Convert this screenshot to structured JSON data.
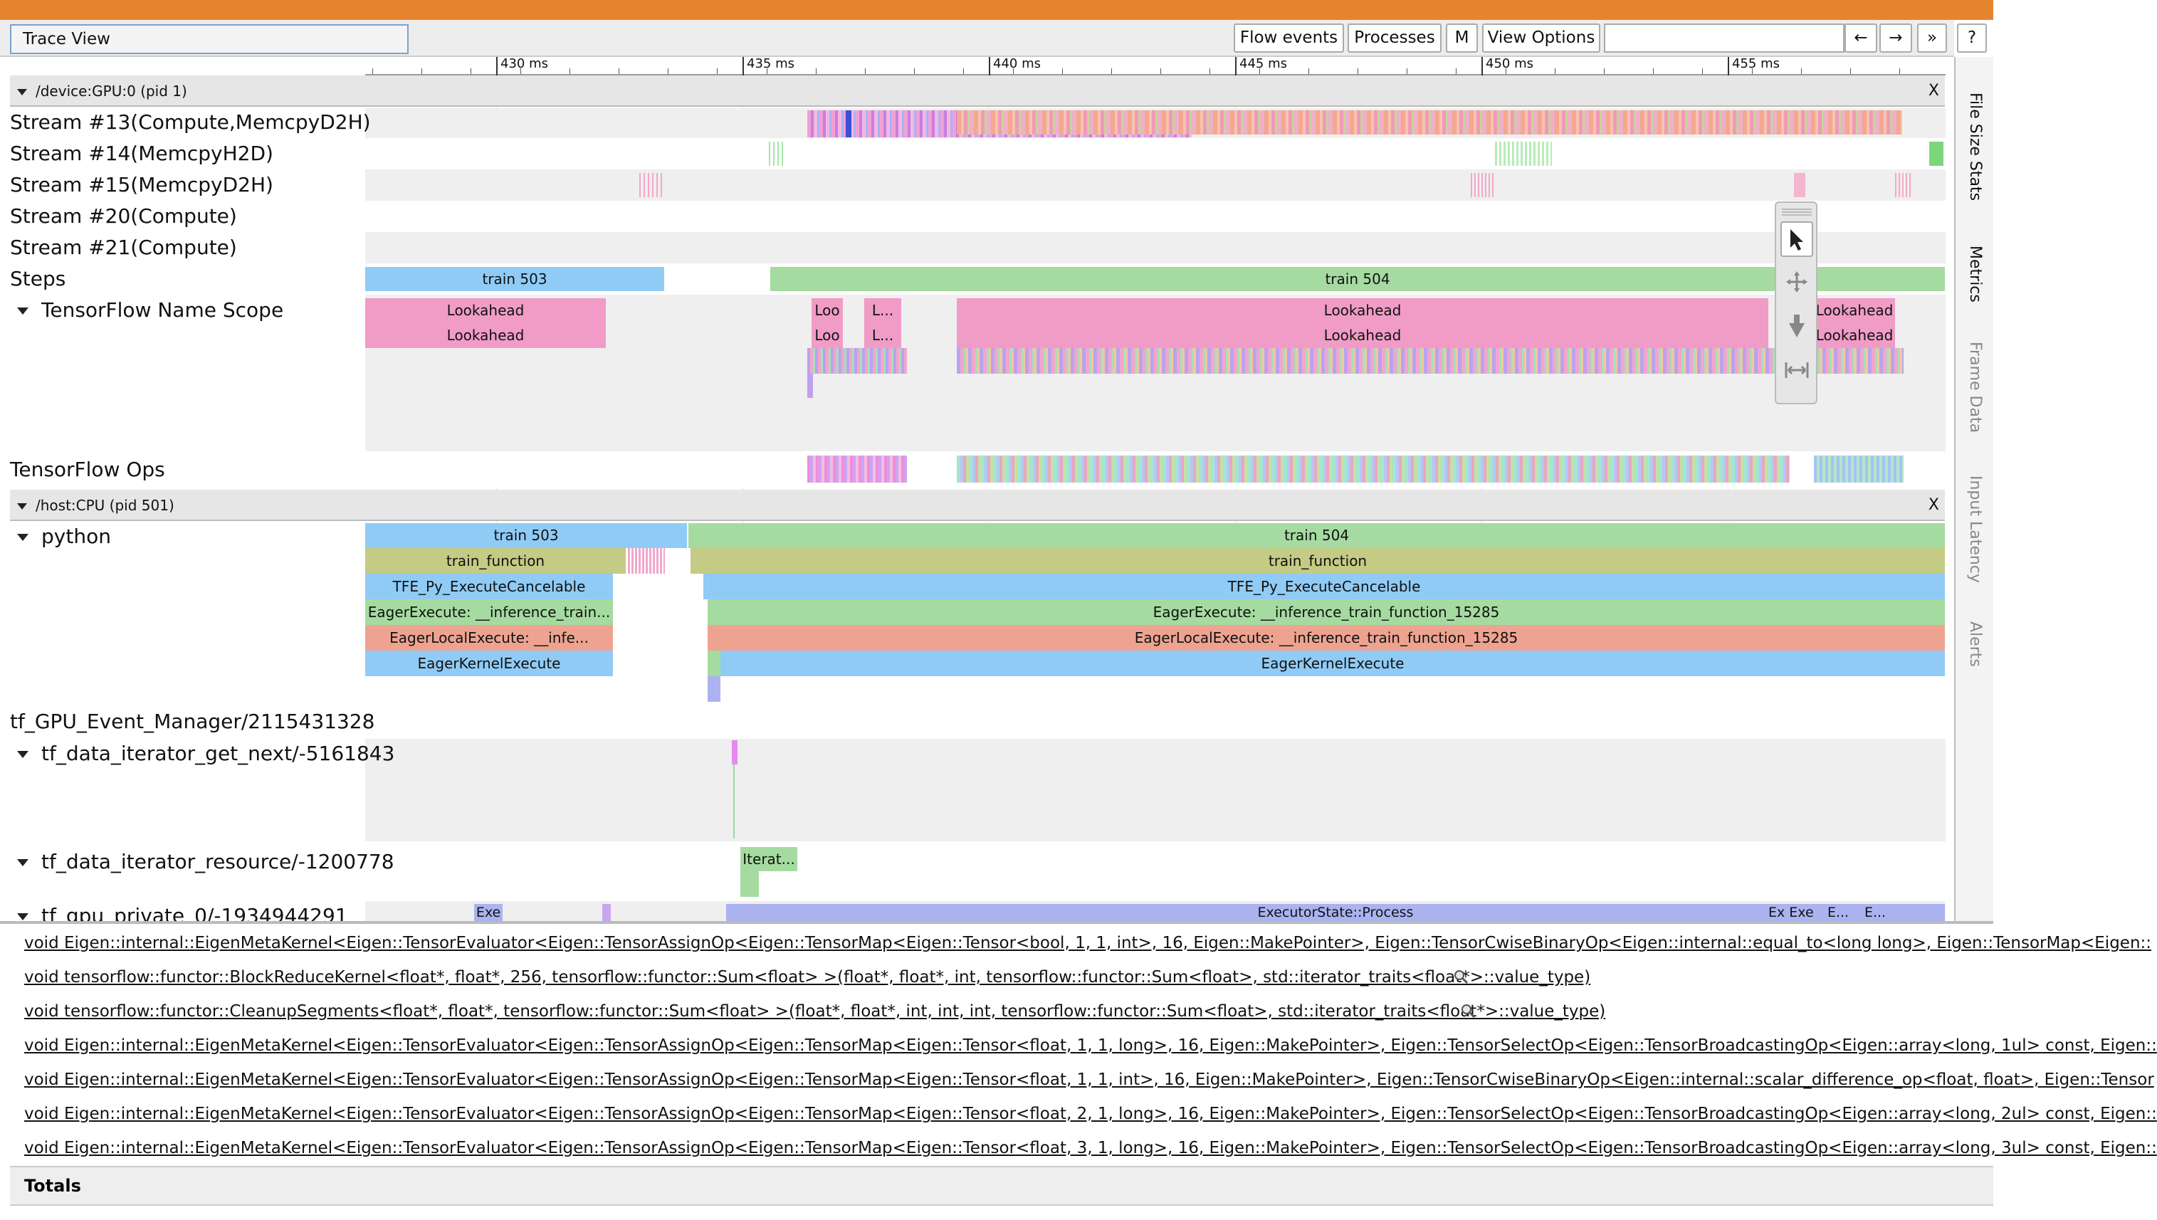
{
  "window": {
    "title": "Trace View"
  },
  "toolbar": {
    "flow_events": "Flow events",
    "processes": "Processes",
    "m": "M",
    "view_options": "View Options",
    "back": "←",
    "forward": "→",
    "more": "»",
    "help": "?"
  },
  "sidebar": {
    "tabs": [
      "File Size Stats",
      "Metrics",
      "Frame Data",
      "Input Latency",
      "Alerts"
    ]
  },
  "ruler": {
    "ticks": [
      "430 ms",
      "435 ms",
      "440 ms",
      "445 ms",
      "450 ms",
      "455 ms"
    ]
  },
  "gpu": {
    "header": "/device:GPU:0 (pid 1)",
    "close": "X",
    "tracks": [
      "Stream #13(Compute,MemcpyD2H)",
      "Stream #14(MemcpyH2D)",
      "Stream #15(MemcpyD2H)",
      "Stream #20(Compute)",
      "Stream #21(Compute)",
      "Steps",
      "TensorFlow Name Scope",
      "TensorFlow Ops"
    ],
    "steps": {
      "train_503": "train 503",
      "train_504": "train 504"
    },
    "lookahead": {
      "full": "Lookahead",
      "loo": "Loo",
      "l": "L..."
    }
  },
  "cpu": {
    "header": "/host:CPU (pid 501)",
    "close": "X",
    "tracks": [
      "python",
      "tf_GPU_Event_Manager/2115431328",
      "tf_data_iterator_get_next/-5161843",
      "tf_data_iterator_resource/-1200778",
      "tf_gpu_private_0/-1934944291"
    ],
    "python": {
      "train_503": "train 503",
      "train_504": "train 504",
      "train_function": "train_function",
      "tfe": "TFE_Py_ExecuteCancelable",
      "eager_left": "EagerExecute: __inference_train...",
      "eager_right": "EagerExecute: __inference_train_function_15285",
      "local_left": "EagerLocalExecute: __infe...",
      "local_right": "EagerLocalExecute: __inference_train_function_15285",
      "kernel": "EagerKernelExecute"
    },
    "iterat": "Iterat...",
    "executor": {
      "exe": "Exe",
      "process": "ExecutorState::Process",
      "exexe": "Ex Exe",
      "e1": "E...",
      "e2": "E..."
    }
  },
  "bottom": {
    "rows": [
      "void Eigen::internal::EigenMetaKernel<Eigen::TensorEvaluator<Eigen::TensorAssignOp<Eigen::TensorMap<Eigen::Tensor<bool, 1, 1, int>, 16, Eigen::MakePointer>, Eigen::TensorCwiseBinaryOp<Eigen::internal::equal_to<long long>, Eigen::TensorMap<Eigen::",
      "void tensorflow::functor::BlockReduceKernel<float*, float*, 256, tensorflow::functor::Sum<float> >(float*, float*, int, tensorflow::functor::Sum<float>, std::iterator_traits<float*>::value_type)",
      "void tensorflow::functor::CleanupSegments<float*, float*, tensorflow::functor::Sum<float> >(float*, float*, int, int, int, tensorflow::functor::Sum<float>, std::iterator_traits<float*>::value_type)",
      "void Eigen::internal::EigenMetaKernel<Eigen::TensorEvaluator<Eigen::TensorAssignOp<Eigen::TensorMap<Eigen::Tensor<float, 1, 1, long>, 16, Eigen::MakePointer>, Eigen::TensorSelectOp<Eigen::TensorBroadcastingOp<Eigen::array<long, 1ul> const, Eigen::",
      "void Eigen::internal::EigenMetaKernel<Eigen::TensorEvaluator<Eigen::TensorAssignOp<Eigen::TensorMap<Eigen::Tensor<float, 1, 1, int>, 16, Eigen::MakePointer>, Eigen::TensorCwiseBinaryOp<Eigen::internal::scalar_difference_op<float, float>, Eigen::Tensor",
      "void Eigen::internal::EigenMetaKernel<Eigen::TensorEvaluator<Eigen::TensorAssignOp<Eigen::TensorMap<Eigen::Tensor<float, 2, 1, long>, 16, Eigen::MakePointer>, Eigen::TensorSelectOp<Eigen::TensorBroadcastingOp<Eigen::array<long, 2ul> const, Eigen::",
      "void Eigen::internal::EigenMetaKernel<Eigen::TensorEvaluator<Eigen::TensorAssignOp<Eigen::TensorMap<Eigen::Tensor<float, 3, 1, long>, 16, Eigen::MakePointer>, Eigen::TensorSelectOp<Eigen::TensorBroadcastingOp<Eigen::array<long, 3ul> const, Eigen::"
    ],
    "totals": "Totals"
  },
  "colors": {
    "accent": "#e6842e",
    "blue": "#90cbf5",
    "green": "#a5dba0",
    "pink": "#f09cc6",
    "olive": "#c4cb84",
    "salmon": "#eda390",
    "lavender": "#aab3f0"
  }
}
